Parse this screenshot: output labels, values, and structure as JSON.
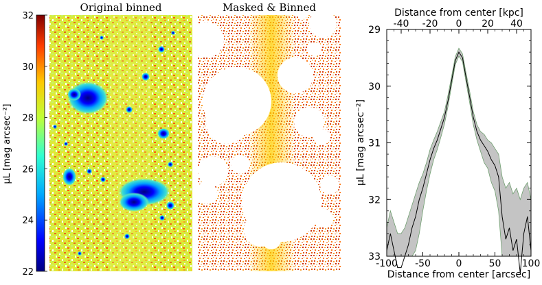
{
  "panels": {
    "left_title": "Original binned",
    "middle_title": "Masked & Binned"
  },
  "colorbar": {
    "label": "μL [mag arcsec⁻²]",
    "ticks": [
      "22",
      "24",
      "26",
      "28",
      "30",
      "32"
    ],
    "range": [
      22,
      32
    ],
    "colors": [
      "#00007f",
      "#0000ff",
      "#00a8ff",
      "#2fffd0",
      "#c0ff37",
      "#ffc800",
      "#ff3c00",
      "#800000"
    ]
  },
  "chart_data": [
    {
      "type": "line",
      "title_top_axis": "Distance from center [kpc]",
      "xlabel": "Distance from center [arcsec]",
      "ylabel": "μL [mag arcsec⁻²]",
      "xlim": [
        -100,
        100
      ],
      "ylim": [
        33,
        29
      ],
      "top_xlim": [
        -50,
        50
      ],
      "x_ticks": [
        "-100",
        "-50",
        "0",
        "50",
        "100"
      ],
      "top_ticks": [
        "-40",
        "-20",
        "0",
        "20",
        "40"
      ],
      "y_ticks": [
        "29",
        "30",
        "31",
        "32",
        "33"
      ],
      "series": [
        {
          "x": [
            -100,
            -95,
            -90,
            -85,
            -80,
            -75,
            -70,
            -65,
            -60,
            -55,
            -50,
            -45,
            -40,
            -35,
            -30,
            -25,
            -20,
            -15,
            -10,
            -5,
            0,
            5,
            10,
            15,
            20,
            25,
            30,
            35,
            40,
            45,
            50,
            55,
            60,
            65,
            70,
            75,
            80,
            85,
            90,
            95,
            100
          ],
          "values": [
            32.9,
            32.6,
            32.9,
            33.2,
            33.2,
            33.0,
            32.8,
            32.5,
            32.3,
            32.0,
            31.8,
            31.55,
            31.3,
            31.1,
            30.95,
            30.75,
            30.55,
            30.25,
            29.9,
            29.55,
            29.4,
            29.5,
            29.85,
            30.2,
            30.55,
            30.8,
            30.95,
            31.05,
            31.15,
            31.3,
            31.4,
            31.6,
            32.3,
            32.7,
            32.5,
            32.9,
            32.7,
            33.3,
            32.6,
            32.3,
            32.9
          ],
          "lower": [
            32.5,
            32.2,
            32.4,
            32.6,
            32.6,
            32.5,
            32.3,
            32.1,
            31.9,
            31.7,
            31.55,
            31.35,
            31.12,
            30.95,
            30.8,
            30.62,
            30.45,
            30.15,
            29.82,
            29.48,
            29.33,
            29.43,
            29.77,
            30.1,
            30.45,
            30.68,
            30.8,
            30.85,
            30.95,
            31.0,
            31.1,
            31.2,
            31.6,
            31.8,
            31.7,
            31.9,
            31.8,
            32.0,
            31.8,
            31.7,
            32.0
          ],
          "upper": [
            33.0,
            33.0,
            33.0,
            33.0,
            33.0,
            33.0,
            33.0,
            33.0,
            32.9,
            32.6,
            32.2,
            31.85,
            31.55,
            31.3,
            31.12,
            30.9,
            30.67,
            30.35,
            29.98,
            29.62,
            29.47,
            29.57,
            29.93,
            30.3,
            30.68,
            30.95,
            31.15,
            31.35,
            31.45,
            31.7,
            31.85,
            32.2,
            33.0,
            33.0,
            33.0,
            33.0,
            33.0,
            33.0,
            33.0,
            33.0,
            33.0
          ]
        }
      ]
    }
  ]
}
